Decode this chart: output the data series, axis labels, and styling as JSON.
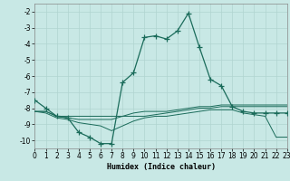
{
  "xlabel": "Humidex (Indice chaleur)",
  "xlim": [
    0,
    23
  ],
  "ylim": [
    -10.5,
    -1.5
  ],
  "yticks": [
    -2,
    -3,
    -4,
    -5,
    -6,
    -7,
    -8,
    -9,
    -10
  ],
  "xticks": [
    0,
    1,
    2,
    3,
    4,
    5,
    6,
    7,
    8,
    9,
    10,
    11,
    12,
    13,
    14,
    15,
    16,
    17,
    18,
    19,
    20,
    21,
    22,
    23
  ],
  "bg_color": "#c8e8e5",
  "grid_color": "#b0d4d0",
  "line_color": "#1a6b5a",
  "curve_main_y": [
    -7.5,
    -8.0,
    -8.5,
    -8.6,
    -9.5,
    -9.8,
    -10.2,
    -10.2,
    -6.4,
    -5.8,
    -3.6,
    -3.5,
    -3.7,
    -3.2,
    -2.1,
    -4.2,
    -6.2,
    -6.6,
    -7.9,
    -8.2,
    -8.3,
    -8.3,
    -8.3,
    -8.3
  ],
  "curve2_y": [
    -8.2,
    -8.2,
    -8.5,
    -8.5,
    -8.5,
    -8.5,
    -8.5,
    -8.5,
    -8.5,
    -8.3,
    -8.2,
    -8.2,
    -8.2,
    -8.1,
    -8.0,
    -7.9,
    -7.9,
    -7.8,
    -7.8,
    -7.8,
    -7.8,
    -7.8,
    -7.8,
    -7.8
  ],
  "curve3_y": [
    -8.2,
    -8.2,
    -8.5,
    -8.6,
    -8.7,
    -8.7,
    -8.7,
    -8.7,
    -8.5,
    -8.5,
    -8.5,
    -8.4,
    -8.3,
    -8.2,
    -8.1,
    -8.0,
    -8.0,
    -7.9,
    -7.9,
    -7.9,
    -7.9,
    -7.9,
    -7.9,
    -7.9
  ],
  "curve4_y": [
    -8.2,
    -8.3,
    -8.6,
    -8.7,
    -8.9,
    -9.0,
    -9.1,
    -9.4,
    -9.1,
    -8.8,
    -8.6,
    -8.5,
    -8.5,
    -8.4,
    -8.3,
    -8.2,
    -8.1,
    -8.1,
    -8.1,
    -8.3,
    -8.4,
    -8.5,
    -9.8,
    -9.8
  ]
}
